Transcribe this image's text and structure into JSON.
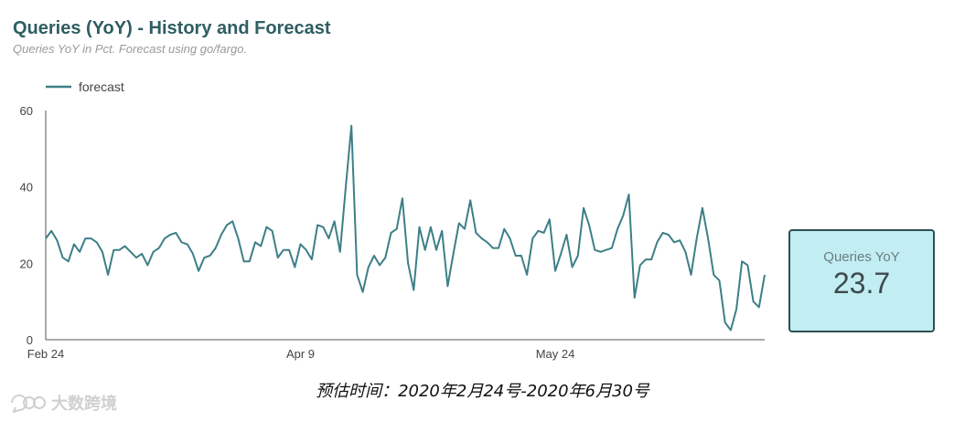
{
  "header": {
    "title": "Queries (YoY) - History and Forecast",
    "subtitle": "Queries YoY in Pct. Forecast using go/fargo."
  },
  "kpi": {
    "label": "Queries YoY",
    "value": "23.7"
  },
  "caption": "预估时间：2020年2月24号-2020年6月30号",
  "watermark": {
    "text": "大数跨境",
    "icon": "brand-logo-icon"
  },
  "colors": {
    "line": "#3d7f87",
    "kpi_bg": "#c2edf2",
    "kpi_border": "#2f4f52",
    "title": "#2f5d62"
  },
  "chart_data": {
    "type": "line",
    "title": "Queries (YoY) - History and Forecast",
    "subtitle": "Queries YoY in Pct. Forecast using go/fargo.",
    "xlabel": "",
    "ylabel": "",
    "x_start": "2020-02-24",
    "x_end": "2020-06-30",
    "x_ticks": [
      {
        "label": "Feb 24",
        "date": "2020-02-24"
      },
      {
        "label": "Apr 9",
        "date": "2020-04-09"
      },
      {
        "label": "May 24",
        "date": "2020-05-24"
      }
    ],
    "ylim": [
      0,
      60
    ],
    "y_ticks": [
      0,
      20,
      40,
      60
    ],
    "grid": false,
    "legend": "top-left",
    "series": [
      {
        "name": "forecast",
        "color": "#3d7f87",
        "values": [
          26.5,
          28.5,
          26,
          21.5,
          20.5,
          25,
          23,
          26.5,
          26.5,
          25.5,
          23,
          17,
          23.5,
          23.5,
          24.5,
          23,
          21.5,
          22.5,
          19.5,
          23,
          24,
          26.5,
          27.5,
          28,
          25.5,
          25,
          22.5,
          18,
          21.5,
          22,
          24,
          27.5,
          30,
          31,
          26.5,
          20.5,
          20.5,
          25.5,
          24.5,
          29.5,
          28.5,
          21.5,
          23.5,
          23.5,
          19,
          25,
          23.5,
          21,
          30,
          29.5,
          26.5,
          31,
          23,
          40,
          56,
          17,
          12.5,
          19,
          22,
          19.5,
          21.5,
          28,
          29,
          37,
          20,
          13,
          29.5,
          23.5,
          29.5,
          23.5,
          28.5,
          14,
          22.5,
          30.5,
          29,
          36.5,
          28,
          26.5,
          25.5,
          24,
          24,
          29,
          26.5,
          22,
          22,
          17,
          26.5,
          28.5,
          28,
          31.5,
          18,
          22.5,
          27.5,
          19,
          22,
          34.5,
          30,
          23.5,
          23,
          23.5,
          24,
          29,
          32.5,
          38,
          11,
          19.5,
          21,
          21,
          25.5,
          28,
          27.5,
          25.5,
          26,
          23,
          17,
          26.5,
          34.5,
          26.5,
          17,
          15.5,
          4.5,
          2.5,
          8,
          20.5,
          19.5,
          10,
          8.5,
          17
        ]
      }
    ]
  }
}
